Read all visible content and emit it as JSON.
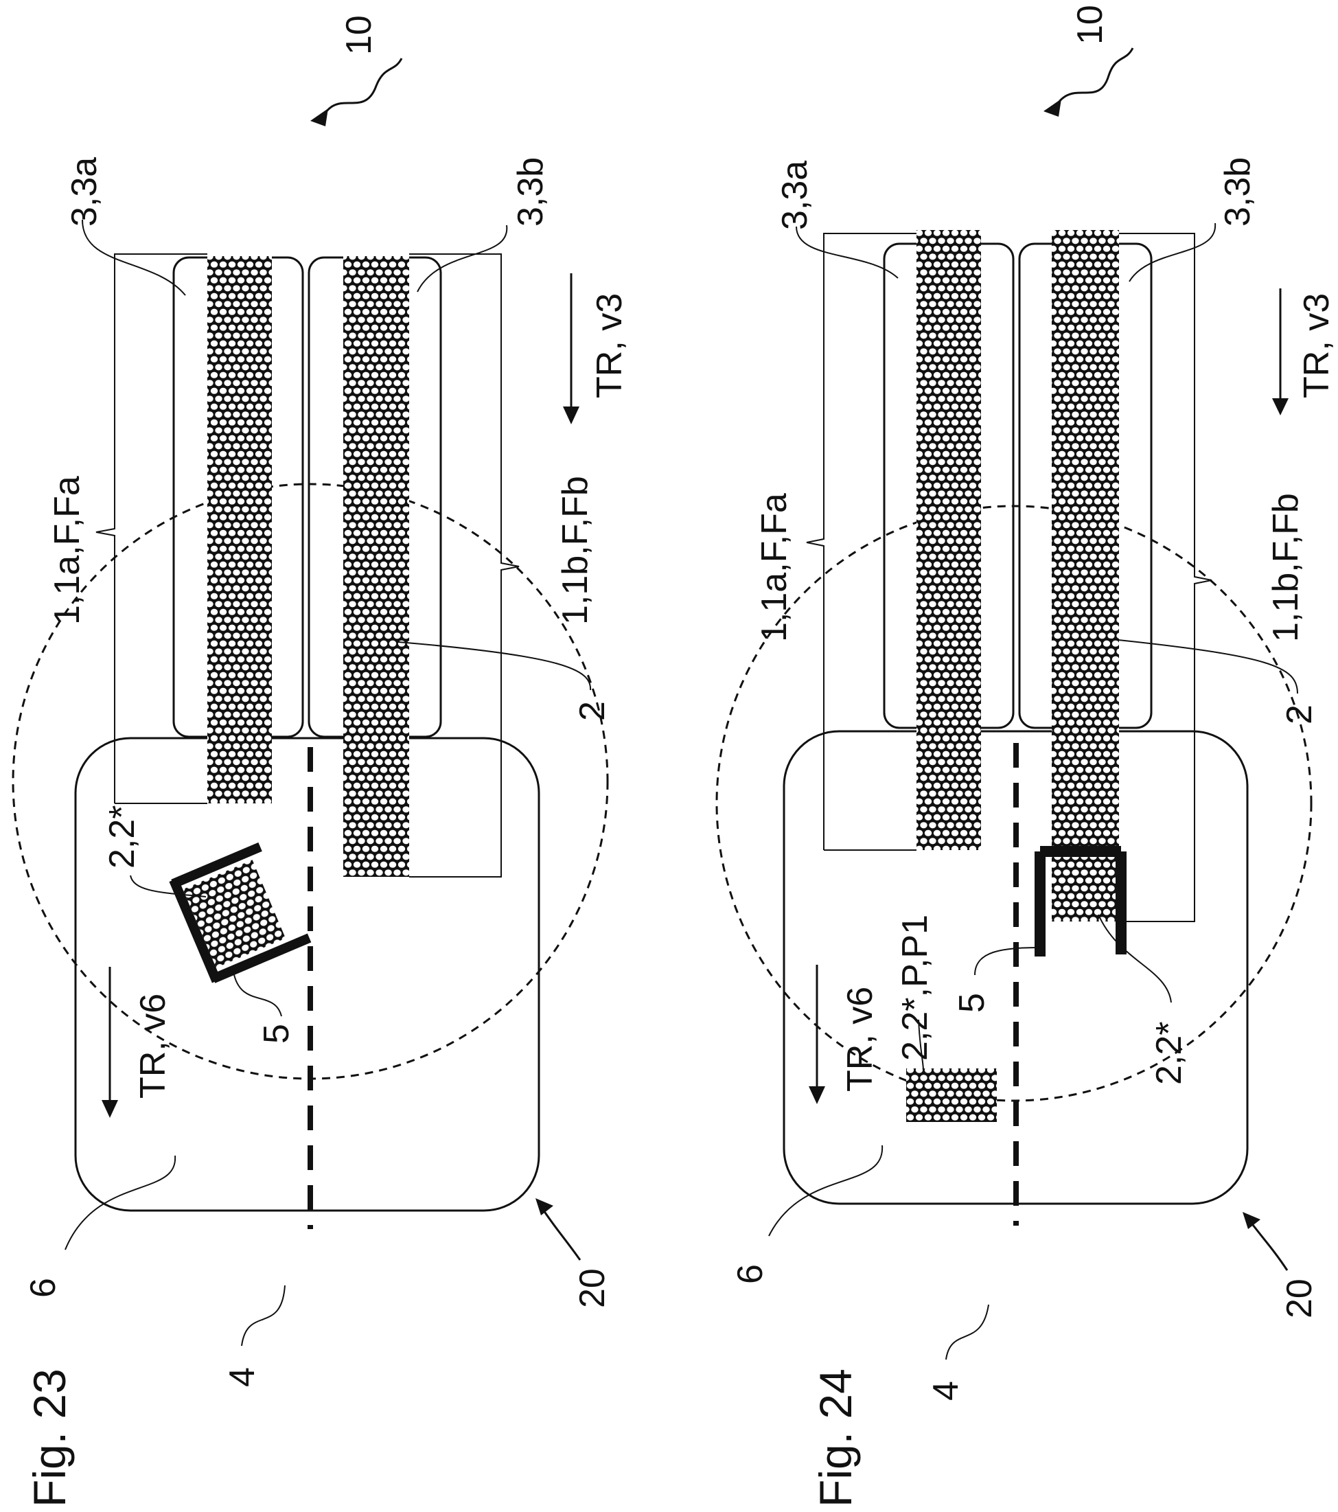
{
  "figures": [
    {
      "title": "Fig. 23",
      "labels": {
        "ref_10": "10",
        "ref_20": "20",
        "ref_4": "4",
        "ref_6": "6",
        "ref_5": "5",
        "ref_2": "2",
        "ref_2_2star": "2,2*",
        "ref_3_3a": "3,3a",
        "ref_3_3b": "3,3b",
        "ref_1_1a": "1,1a,F,Fa",
        "ref_1_1b": "1,1b,F,Fb",
        "tr_v3": "TR, v3",
        "tr_v6": "TR, v6"
      }
    },
    {
      "title": "Fig. 24",
      "labels": {
        "ref_10": "10",
        "ref_20": "20",
        "ref_4": "4",
        "ref_6": "6",
        "ref_5": "5",
        "ref_2": "2",
        "ref_2_2star": "2,2*",
        "ref_2_2star_p": "2,2*,P,P1",
        "ref_3_3a": "3,3a",
        "ref_3_3b": "3,3b",
        "ref_1_1a": "1,1a,F,Fa",
        "ref_1_1b": "1,1b,F,Fb",
        "tr_v3": "TR, v3",
        "tr_v6": "TR, v6"
      }
    }
  ],
  "colors": {
    "ink": "#111111",
    "pack_fill": "#ffffff",
    "background": "#ffffff"
  }
}
